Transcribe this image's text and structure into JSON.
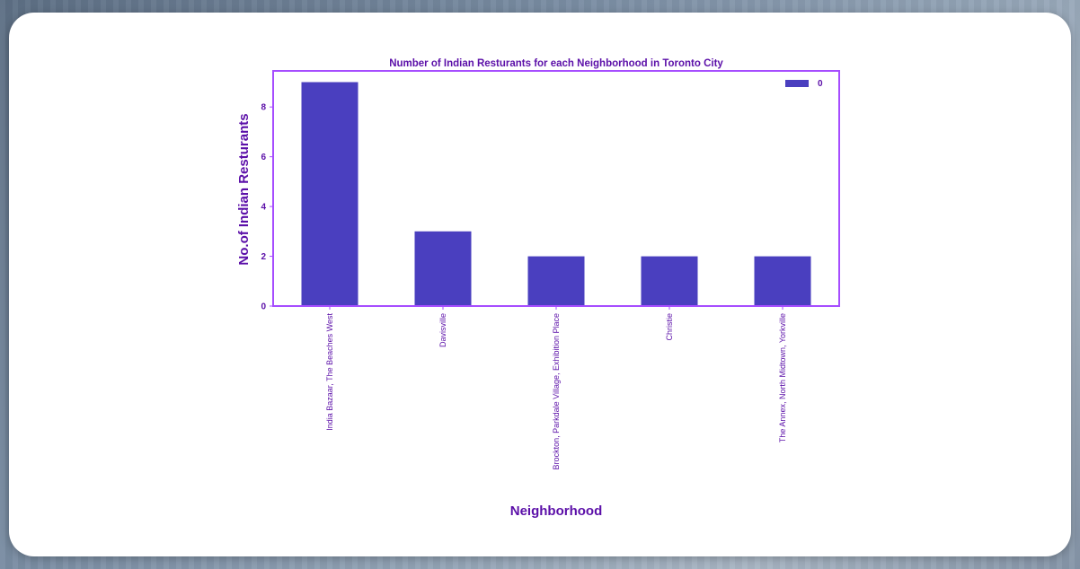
{
  "colors": {
    "bar": "#4a3fbf",
    "axes": "#a64dff",
    "text": "#5b0fa8"
  },
  "chart_data": {
    "type": "bar",
    "title": "Number of Indian Resturants for each Neighborhood in Toronto City",
    "xlabel": "Neighborhood",
    "ylabel": "No.of Indian Resturants",
    "categories": [
      "India Bazaar, The Beaches West",
      "Davisville",
      "Brockton, Parkdale Village, Exhibition Place",
      "Christie",
      "The Annex, North Midtown, Yorkville"
    ],
    "values": [
      9,
      3,
      2,
      2,
      2
    ],
    "ylim": [
      0,
      9.45
    ],
    "yticks": [
      0,
      2,
      4,
      6,
      8
    ],
    "legend": {
      "position": "top-right",
      "entries": [
        "0"
      ]
    },
    "grid": false
  }
}
